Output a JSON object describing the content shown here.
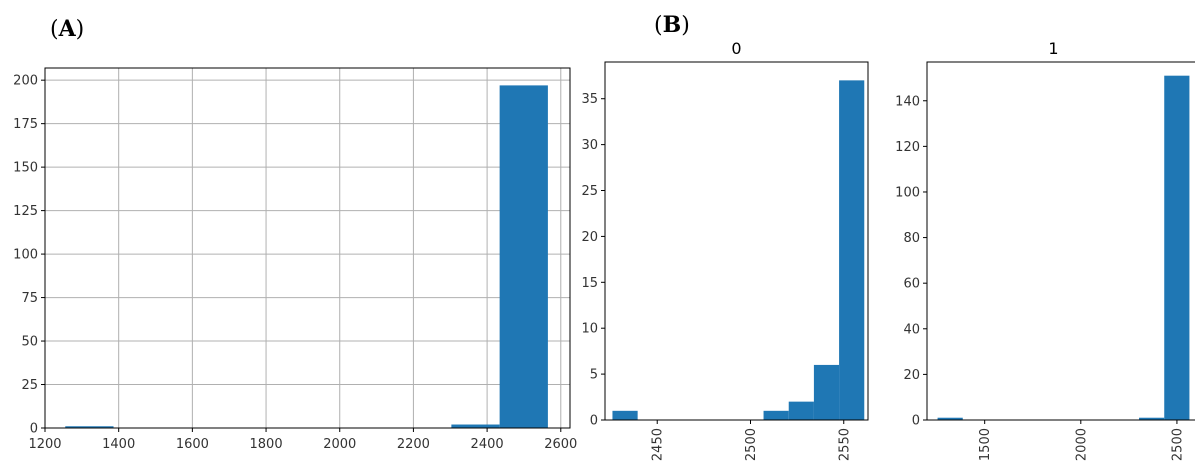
{
  "panels": [
    {
      "label_open": "(",
      "label_letter": "A",
      "label_close": ")"
    },
    {
      "label_open": "(",
      "label_letter": "B",
      "label_close": ")"
    }
  ],
  "colors": {
    "bar": "#1f77b4",
    "grid": "#b0b0b0",
    "axis": "#000000"
  },
  "chart_data": [
    {
      "type": "bar",
      "subtype": "histogram",
      "panel": "A",
      "title": "",
      "xlabel": "",
      "ylabel": "",
      "grid": true,
      "xlim": [
        1200,
        2625
      ],
      "ylim": [
        0,
        207
      ],
      "xticks": [
        1200,
        1400,
        1600,
        1800,
        2000,
        2200,
        2400,
        2600
      ],
      "yticks": [
        0,
        25,
        50,
        75,
        100,
        125,
        150,
        175,
        200
      ],
      "bins": [
        {
          "x0": 1255,
          "x1": 1386,
          "count": 1
        },
        {
          "x0": 1386,
          "x1": 1517,
          "count": 0
        },
        {
          "x0": 1517,
          "x1": 1648,
          "count": 0
        },
        {
          "x0": 1648,
          "x1": 1779,
          "count": 0
        },
        {
          "x0": 1779,
          "x1": 1910,
          "count": 0
        },
        {
          "x0": 1910,
          "x1": 2041,
          "count": 0
        },
        {
          "x0": 2041,
          "x1": 2172,
          "count": 0
        },
        {
          "x0": 2172,
          "x1": 2303,
          "count": 0
        },
        {
          "x0": 2303,
          "x1": 2434,
          "count": 2
        },
        {
          "x0": 2434,
          "x1": 2565,
          "count": 197
        }
      ]
    },
    {
      "type": "bar",
      "subtype": "histogram",
      "panel": "B",
      "title": "0",
      "xlabel": "",
      "ylabel": "",
      "grid": false,
      "xlim": [
        2422,
        2563
      ],
      "ylim": [
        0,
        39
      ],
      "xticks": [
        2450,
        2500,
        2550
      ],
      "yticks": [
        0,
        5,
        10,
        15,
        20,
        25,
        30,
        35
      ],
      "bins": [
        {
          "x0": 2426,
          "x1": 2439.5,
          "count": 1
        },
        {
          "x0": 2439.5,
          "x1": 2453,
          "count": 0
        },
        {
          "x0": 2453,
          "x1": 2466.5,
          "count": 0
        },
        {
          "x0": 2466.5,
          "x1": 2480,
          "count": 0
        },
        {
          "x0": 2480,
          "x1": 2493.5,
          "count": 0
        },
        {
          "x0": 2493.5,
          "x1": 2507,
          "count": 0
        },
        {
          "x0": 2507,
          "x1": 2520.5,
          "count": 1
        },
        {
          "x0": 2520.5,
          "x1": 2534,
          "count": 2
        },
        {
          "x0": 2534,
          "x1": 2547.5,
          "count": 6
        },
        {
          "x0": 2547.5,
          "x1": 2561,
          "count": 37
        }
      ]
    },
    {
      "type": "bar",
      "subtype": "histogram",
      "panel": "B",
      "title": "1",
      "xlabel": "",
      "ylabel": "",
      "grid": false,
      "xlim": [
        1200,
        2620
      ],
      "ylim": [
        0,
        157
      ],
      "xticks": [
        1500,
        2000,
        2500
      ],
      "yticks": [
        0,
        20,
        40,
        60,
        80,
        100,
        120,
        140
      ],
      "bins": [
        {
          "x0": 1255,
          "x1": 1386,
          "count": 1
        },
        {
          "x0": 1386,
          "x1": 1517,
          "count": 0
        },
        {
          "x0": 1517,
          "x1": 1648,
          "count": 0
        },
        {
          "x0": 1648,
          "x1": 1779,
          "count": 0
        },
        {
          "x0": 1779,
          "x1": 1910,
          "count": 0
        },
        {
          "x0": 1910,
          "x1": 2041,
          "count": 0
        },
        {
          "x0": 2041,
          "x1": 2172,
          "count": 0
        },
        {
          "x0": 2172,
          "x1": 2303,
          "count": 0
        },
        {
          "x0": 2303,
          "x1": 2434,
          "count": 1
        },
        {
          "x0": 2434,
          "x1": 2565,
          "count": 151
        }
      ]
    }
  ]
}
